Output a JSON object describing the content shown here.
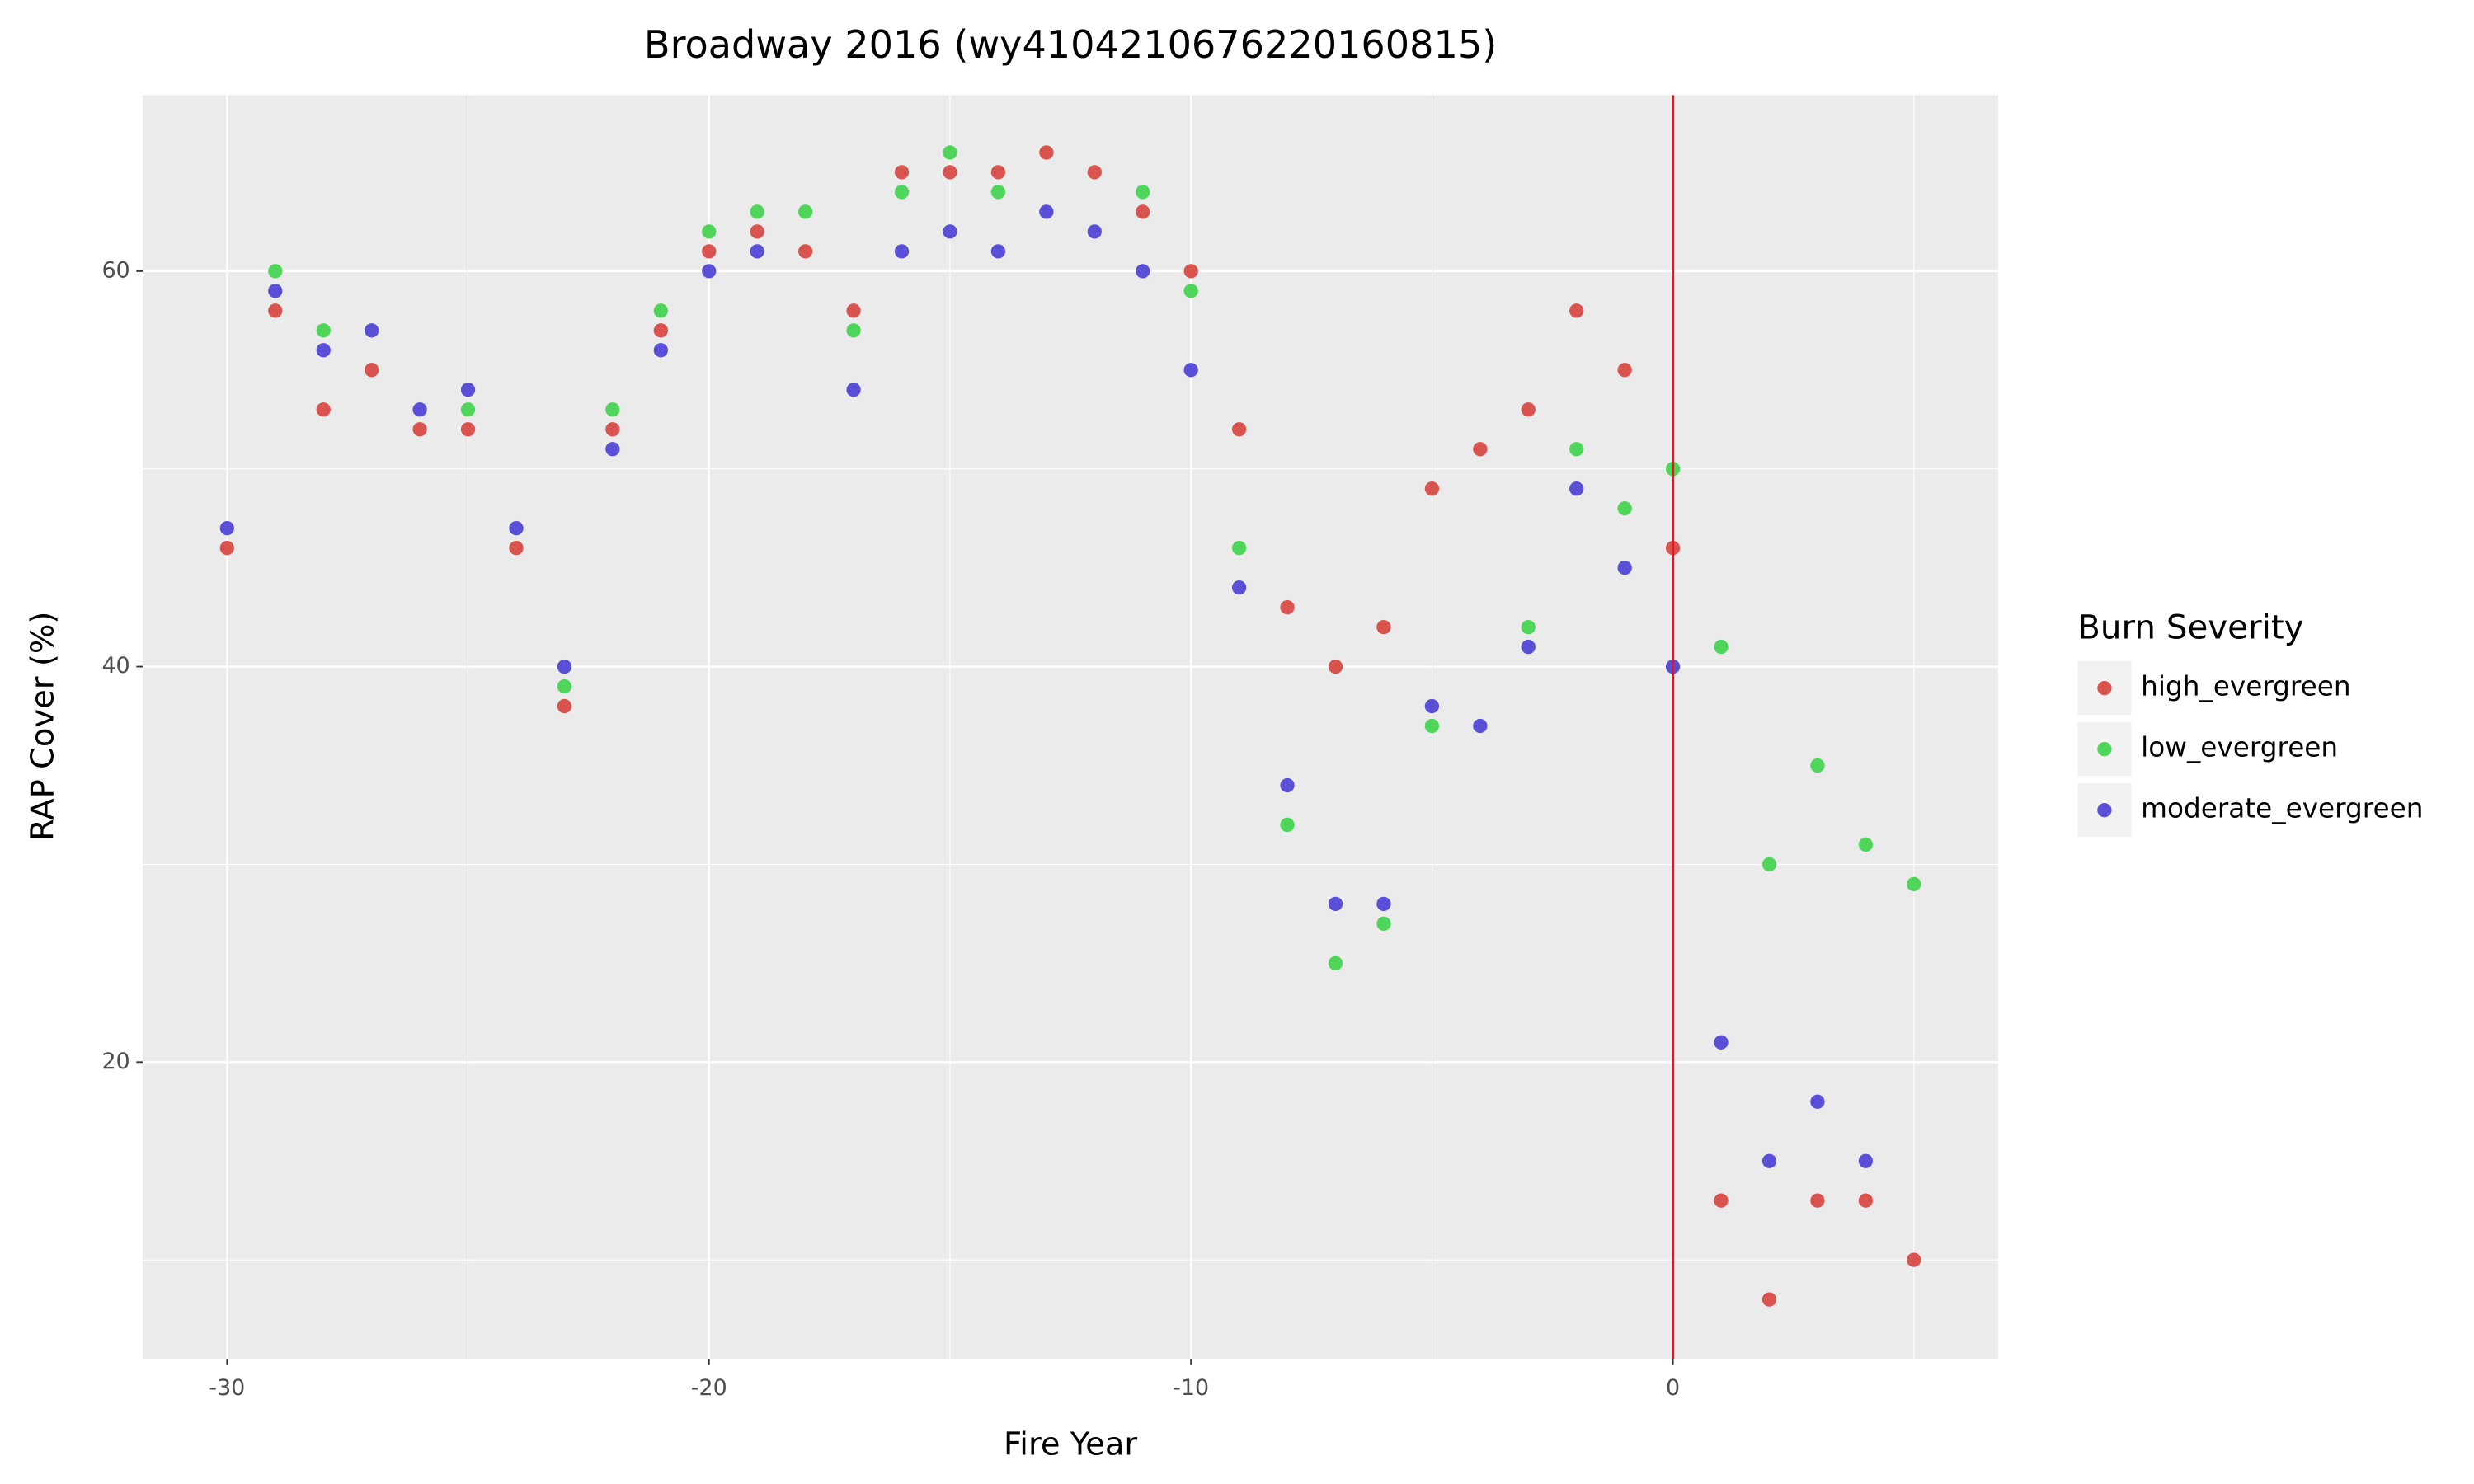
{
  "chart_data": {
    "type": "scatter",
    "title": "Broadway 2016 (wy4104210676220160815)",
    "x_label": "Fire Year",
    "y_label": "RAP Cover (%)",
    "legend_title": "Burn Severity",
    "legend": "right",
    "xlim": [
      -31.75,
      6.75
    ],
    "ylim": [
      5,
      68.9
    ],
    "xticks": [
      -30,
      -20,
      -10,
      0
    ],
    "yticks": [
      20,
      40,
      60
    ],
    "grid": true,
    "vline": {
      "x": 0,
      "color": "#e8141c"
    },
    "series": [
      {
        "name": "high_evergreen",
        "color": "#d9534f",
        "x": [
          -30,
          -29,
          -28,
          -27,
          -26,
          -25,
          -24,
          -23,
          -22,
          -21,
          -20,
          -19,
          -18,
          -17,
          -16,
          -15,
          -14,
          -13,
          -12,
          -11,
          -10,
          -9,
          -8,
          -7,
          -6,
          -5,
          -4,
          -3,
          -2,
          -1,
          0,
          1,
          2,
          3,
          4,
          5
        ],
        "values": [
          46,
          58,
          53,
          55,
          52,
          52,
          46,
          38,
          52,
          57,
          61,
          62,
          61,
          58,
          65,
          65,
          65,
          66,
          65,
          63,
          60,
          52,
          43,
          40,
          42,
          49,
          51,
          53,
          58,
          55,
          46,
          13,
          8,
          13,
          13,
          10
        ]
      },
      {
        "name": "low_evergreen",
        "color": "#4fd65a",
        "x": [
          -29,
          -28,
          -25,
          -23,
          -22,
          -21,
          -20,
          -19,
          -18,
          -17,
          -16,
          -15,
          -14,
          -11,
          -10,
          -9,
          -8,
          -7,
          -6,
          -5,
          -3,
          -2,
          -1,
          0,
          1,
          2,
          3,
          4,
          5
        ],
        "values": [
          60,
          57,
          53,
          39,
          53,
          58,
          62,
          63,
          63,
          57,
          64,
          66,
          64,
          64,
          59,
          46,
          32,
          25,
          27,
          37,
          42,
          51,
          48,
          50,
          41,
          30,
          35,
          31,
          29
        ]
      },
      {
        "name": "moderate_evergreen",
        "color": "#5a50d8",
        "x": [
          -30,
          -29,
          -28,
          -27,
          -26,
          -25,
          -24,
          -23,
          -22,
          -21,
          -20,
          -19,
          -17,
          -16,
          -15,
          -14,
          -13,
          -12,
          -11,
          -10,
          -9,
          -8,
          -7,
          -6,
          -5,
          -4,
          -3,
          -2,
          -1,
          0,
          1,
          2,
          3,
          4
        ],
        "values": [
          47,
          59,
          56,
          57,
          53,
          54,
          47,
          40,
          51,
          56,
          60,
          61,
          54,
          61,
          62,
          61,
          63,
          62,
          60,
          55,
          44,
          34,
          28,
          28,
          38,
          37,
          41,
          49,
          45,
          40,
          21,
          15,
          18,
          15
        ]
      }
    ]
  }
}
